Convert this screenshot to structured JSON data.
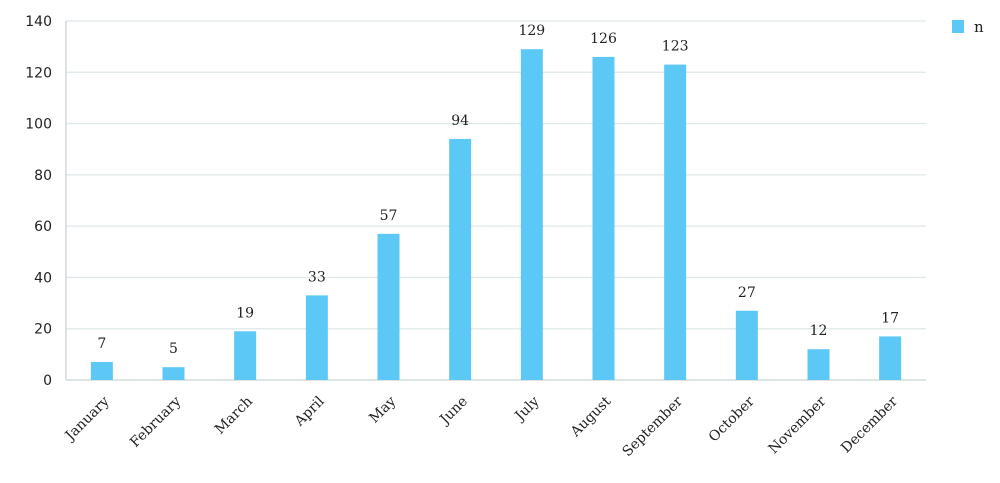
{
  "chart_data": {
    "type": "bar",
    "categories": [
      "January",
      "February",
      "March",
      "April",
      "May",
      "June",
      "July",
      "August",
      "September",
      "October",
      "November",
      "December"
    ],
    "series": [
      {
        "name": "n",
        "values": [
          7,
          5,
          19,
          33,
          57,
          94,
          129,
          126,
          123,
          27,
          12,
          17
        ],
        "color": "#5bc8f5"
      }
    ],
    "title": "",
    "xlabel": "",
    "ylabel": "",
    "ylim": [
      0,
      140
    ],
    "yticks": [
      0,
      20,
      40,
      60,
      80,
      100,
      120,
      140
    ],
    "grid": true,
    "legend_position": "top-right",
    "data_labels": true
  }
}
